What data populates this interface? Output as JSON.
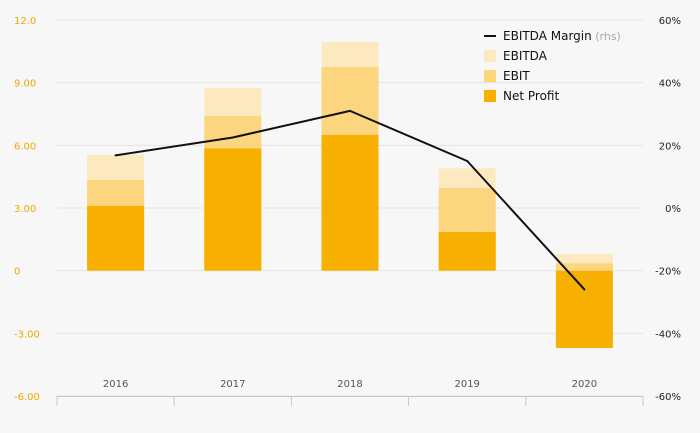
{
  "chart_data": {
    "type": "bar",
    "stacked": "overlapping",
    "categories": [
      "2016",
      "2017",
      "2018",
      "2019",
      "2020"
    ],
    "series": [
      {
        "name": "EBITDA",
        "type": "bar",
        "color": "#fde9bf",
        "values": [
          5.55,
          8.75,
          10.95,
          4.9,
          0.8
        ]
      },
      {
        "name": "EBIT",
        "type": "bar",
        "color": "#fcd57f",
        "values": [
          4.35,
          7.4,
          9.75,
          3.95,
          0.35
        ]
      },
      {
        "name": "Net Profit",
        "type": "bar",
        "color": "#f8b000",
        "values": [
          3.1,
          5.85,
          6.5,
          1.85,
          -3.7
        ]
      },
      {
        "name": "EBITDA Margin",
        "legend_note": "(rhs)",
        "type": "line",
        "axis": "right",
        "color": "#111111",
        "values": [
          16.8,
          22.5,
          31.0,
          15.0,
          -26.0
        ]
      }
    ],
    "yaxis_left": {
      "ylim": [
        -6,
        12
      ],
      "ticks": [
        "12.0",
        "9.00",
        "6.00",
        "3.00",
        "0",
        "-3.00",
        "-6.00"
      ],
      "tick_values": [
        12,
        9,
        6,
        3,
        0,
        -3,
        -6
      ]
    },
    "yaxis_right": {
      "ylim": [
        -60,
        60
      ],
      "ticks": [
        "60%",
        "40%",
        "20%",
        "0%",
        "-20%",
        "-40%",
        "-60%"
      ],
      "tick_values": [
        60,
        40,
        20,
        0,
        -20,
        -40,
        -60
      ]
    },
    "legend_order": [
      "EBITDA Margin",
      "EBITDA",
      "EBIT",
      "Net Profit"
    ],
    "legend_position": "top-right",
    "grid": true,
    "title": "",
    "xlabel": "",
    "ylabel": ""
  }
}
